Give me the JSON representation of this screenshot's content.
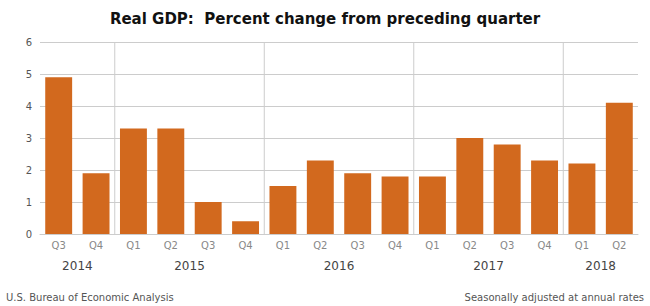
{
  "chart_data": {
    "type": "bar",
    "title": "Real GDP:  Percent change from preceding quarter",
    "categories": [
      "Q3",
      "Q4",
      "Q1",
      "Q2",
      "Q3",
      "Q4",
      "Q1",
      "Q2",
      "Q3",
      "Q4",
      "Q1",
      "Q2",
      "Q3",
      "Q4",
      "Q1",
      "Q2"
    ],
    "group_labels": [
      "2014",
      "2015",
      "2016",
      "2017",
      "2018"
    ],
    "values": [
      4.9,
      1.9,
      3.3,
      3.3,
      1.0,
      0.4,
      1.5,
      2.3,
      1.9,
      1.8,
      1.8,
      3.0,
      2.8,
      2.3,
      2.2,
      4.1
    ],
    "color": "#D2691E",
    "ylim": [
      0,
      6
    ],
    "yticks": [
      0,
      1,
      2,
      3,
      4,
      5,
      6
    ],
    "grid": true,
    "annotations": [
      "U.S. Bureau of Economic Analysis",
      "Seasonally adjusted at annual rates"
    ]
  }
}
